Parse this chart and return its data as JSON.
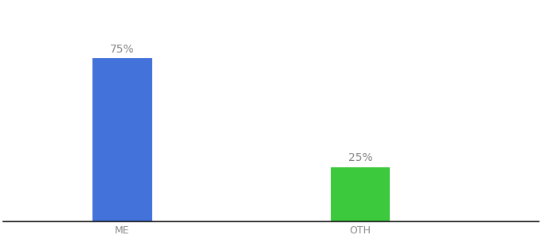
{
  "categories": [
    "ME",
    "OTH"
  ],
  "values": [
    75,
    25
  ],
  "bar_colors": [
    "#4472db",
    "#3dc93d"
  ],
  "label_texts": [
    "75%",
    "25%"
  ],
  "label_color": "#888888",
  "ylim": [
    0,
    100
  ],
  "bar_width": 0.25,
  "background_color": "#ffffff",
  "tick_color": "#888888",
  "axis_line_color": "#111111",
  "label_fontsize": 10,
  "tick_fontsize": 9,
  "bar_positions": [
    1,
    2
  ],
  "xlim": [
    0.5,
    2.75
  ]
}
